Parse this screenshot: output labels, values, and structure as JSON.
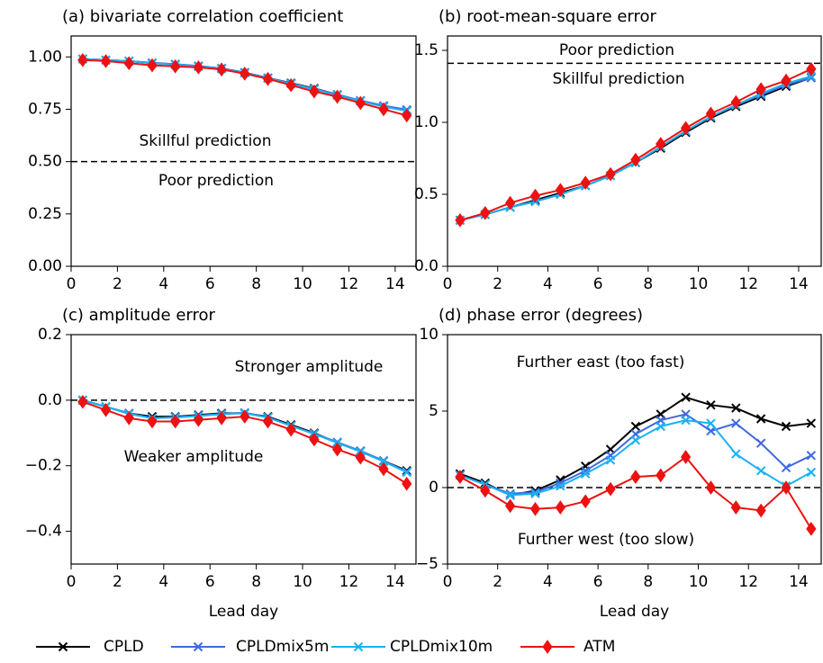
{
  "chart_data": [
    {
      "type": "line",
      "title": "(a) bivariate correlation coefficient",
      "x": [
        0.5,
        1.5,
        2.5,
        3.5,
        4.5,
        5.5,
        6.5,
        7.5,
        8.5,
        9.5,
        10.5,
        11.5,
        12.5,
        13.5,
        14.5
      ],
      "series": [
        {
          "name": "CPLD",
          "color": "#000000",
          "marker": "x",
          "values": [
            0.99,
            0.985,
            0.98,
            0.97,
            0.965,
            0.955,
            0.945,
            0.925,
            0.9,
            0.875,
            0.85,
            0.82,
            0.79,
            0.765,
            0.745
          ]
        },
        {
          "name": "CPLDmix5m",
          "color": "#4169e1",
          "marker": "x",
          "values": [
            0.99,
            0.985,
            0.98,
            0.972,
            0.965,
            0.957,
            0.945,
            0.925,
            0.9,
            0.873,
            0.848,
            0.82,
            0.792,
            0.767,
            0.748
          ]
        },
        {
          "name": "CPLDmix10m",
          "color": "#1ab2f0",
          "marker": "x",
          "values": [
            0.99,
            0.985,
            0.98,
            0.97,
            0.963,
            0.955,
            0.943,
            0.923,
            0.898,
            0.872,
            0.845,
            0.817,
            0.789,
            0.762,
            0.742
          ]
        },
        {
          "name": "ATM",
          "color": "#ee1111",
          "marker": "diamond",
          "values": [
            0.985,
            0.98,
            0.97,
            0.96,
            0.955,
            0.95,
            0.94,
            0.92,
            0.895,
            0.865,
            0.835,
            0.81,
            0.78,
            0.75,
            0.72
          ]
        }
      ],
      "xlim": [
        0,
        14.9
      ],
      "ylim": [
        0,
        1.1
      ],
      "xticks": [
        0,
        2,
        4,
        6,
        8,
        10,
        12,
        14
      ],
      "yticks": [
        {
          "value": 0,
          "label": "0.00"
        },
        {
          "value": 0.25,
          "label": "0.25"
        },
        {
          "value": 0.5,
          "label": "0.50"
        },
        {
          "value": 0.75,
          "label": "0.75"
        },
        {
          "value": 1,
          "label": "1.00"
        }
      ],
      "reference_line": 0.5,
      "annotations": [
        "Skillful prediction",
        "Poor prediction"
      ]
    },
    {
      "type": "line",
      "title": "(b) root-mean-square error",
      "x": [
        0.5,
        1.5,
        2.5,
        3.5,
        4.5,
        5.5,
        6.5,
        7.5,
        8.5,
        9.5,
        10.5,
        11.5,
        12.5,
        13.5,
        14.5
      ],
      "series": [
        {
          "name": "CPLD",
          "color": "#000000",
          "marker": "x",
          "values": [
            0.32,
            0.36,
            0.41,
            0.46,
            0.51,
            0.56,
            0.63,
            0.72,
            0.82,
            0.93,
            1.03,
            1.11,
            1.18,
            1.25,
            1.31
          ]
        },
        {
          "name": "CPLDmix5m",
          "color": "#4169e1",
          "marker": "x",
          "values": [
            0.32,
            0.36,
            0.41,
            0.45,
            0.5,
            0.56,
            0.63,
            0.72,
            0.83,
            0.94,
            1.04,
            1.12,
            1.19,
            1.26,
            1.31
          ]
        },
        {
          "name": "CPLDmix10m",
          "color": "#1ab2f0",
          "marker": "x",
          "values": [
            0.32,
            0.36,
            0.41,
            0.45,
            0.5,
            0.56,
            0.63,
            0.72,
            0.83,
            0.94,
            1.04,
            1.12,
            1.2,
            1.27,
            1.32
          ]
        },
        {
          "name": "ATM",
          "color": "#ee1111",
          "marker": "diamond",
          "values": [
            0.32,
            0.37,
            0.44,
            0.49,
            0.53,
            0.58,
            0.64,
            0.74,
            0.85,
            0.96,
            1.06,
            1.14,
            1.23,
            1.29,
            1.37
          ]
        }
      ],
      "xlim": [
        0,
        14.9
      ],
      "ylim": [
        0,
        1.6
      ],
      "xticks": [
        0,
        2,
        4,
        6,
        8,
        10,
        12,
        14
      ],
      "yticks": [
        {
          "value": 0,
          "label": "0.0"
        },
        0.5,
        {
          "value": 1,
          "label": "1.0"
        },
        1.5
      ],
      "reference_line": 1.41,
      "annotations": [
        "Poor prediction",
        "Skillful prediction"
      ]
    },
    {
      "type": "line",
      "title": "(c) amplitude error",
      "xlabel": "Lead day",
      "x": [
        0.5,
        1.5,
        2.5,
        3.5,
        4.5,
        5.5,
        6.5,
        7.5,
        8.5,
        9.5,
        10.5,
        11.5,
        12.5,
        13.5,
        14.5
      ],
      "series": [
        {
          "name": "CPLD",
          "color": "#000000",
          "marker": "x",
          "values": [
            0.0,
            -0.02,
            -0.04,
            -0.05,
            -0.05,
            -0.045,
            -0.04,
            -0.04,
            -0.05,
            -0.075,
            -0.1,
            -0.13,
            -0.155,
            -0.185,
            -0.215
          ]
        },
        {
          "name": "CPLDmix5m",
          "color": "#4169e1",
          "marker": "x",
          "values": [
            0.0,
            -0.02,
            -0.04,
            -0.055,
            -0.052,
            -0.047,
            -0.042,
            -0.038,
            -0.052,
            -0.078,
            -0.102,
            -0.128,
            -0.155,
            -0.185,
            -0.218
          ]
        },
        {
          "name": "CPLDmix10m",
          "color": "#1ab2f0",
          "marker": "x",
          "values": [
            0.0,
            -0.02,
            -0.042,
            -0.055,
            -0.053,
            -0.048,
            -0.043,
            -0.04,
            -0.053,
            -0.078,
            -0.103,
            -0.13,
            -0.157,
            -0.187,
            -0.22
          ]
        },
        {
          "name": "ATM",
          "color": "#ee1111",
          "marker": "diamond",
          "values": [
            -0.005,
            -0.03,
            -0.055,
            -0.065,
            -0.065,
            -0.06,
            -0.055,
            -0.05,
            -0.065,
            -0.09,
            -0.12,
            -0.15,
            -0.175,
            -0.21,
            -0.255
          ]
        }
      ],
      "xlim": [
        0,
        14.9
      ],
      "ylim": [
        -0.5,
        0.2
      ],
      "xticks": [
        0,
        2,
        4,
        6,
        8,
        10,
        12,
        14
      ],
      "yticks": [
        {
          "value": -0.4,
          "label": "−0.4"
        },
        {
          "value": -0.2,
          "label": "−0.2"
        },
        {
          "value": 0,
          "label": "0.0"
        },
        0.2
      ],
      "reference_line": 0,
      "annotations": [
        "Stronger amplitude",
        "Weaker amplitude"
      ]
    },
    {
      "type": "line",
      "title": "(d) phase error (degrees)",
      "xlabel": "Lead day",
      "x": [
        0.5,
        1.5,
        2.5,
        3.5,
        4.5,
        5.5,
        6.5,
        7.5,
        8.5,
        9.5,
        10.5,
        11.5,
        12.5,
        13.5,
        14.5
      ],
      "series": [
        {
          "name": "CPLD",
          "color": "#000000",
          "marker": "x",
          "values": [
            0.9,
            0.3,
            -0.5,
            -0.2,
            0.5,
            1.4,
            2.5,
            4.0,
            4.8,
            5.9,
            5.4,
            5.2,
            4.5,
            4.0,
            4.2
          ]
        },
        {
          "name": "CPLDmix5m",
          "color": "#4169e1",
          "marker": "x",
          "values": [
            0.8,
            0.2,
            -0.4,
            -0.3,
            0.3,
            1.1,
            2.1,
            3.5,
            4.4,
            4.8,
            3.7,
            4.2,
            2.9,
            1.3,
            2.1
          ]
        },
        {
          "name": "CPLDmix10m",
          "color": "#1ab2f0",
          "marker": "x",
          "values": [
            0.8,
            0.2,
            -0.5,
            -0.4,
            0.1,
            0.9,
            1.8,
            3.1,
            4.0,
            4.4,
            4.2,
            2.2,
            1.1,
            0.1,
            1.0
          ]
        },
        {
          "name": "ATM",
          "color": "#ee1111",
          "marker": "diamond",
          "values": [
            0.7,
            -0.2,
            -1.2,
            -1.4,
            -1.3,
            -0.9,
            -0.1,
            0.7,
            0.8,
            2.0,
            0.0,
            -1.3,
            -1.5,
            0.0,
            -2.7
          ]
        }
      ],
      "xlim": [
        0,
        14.9
      ],
      "ylim": [
        -5,
        10
      ],
      "xticks": [
        0,
        2,
        4,
        6,
        8,
        10,
        12,
        14
      ],
      "yticks": [
        {
          "value": -5,
          "label": "−5"
        },
        0,
        5,
        10
      ],
      "reference_line": 0,
      "annotations": [
        "Further east (too fast)",
        "Further west (too slow)"
      ]
    }
  ]
}
